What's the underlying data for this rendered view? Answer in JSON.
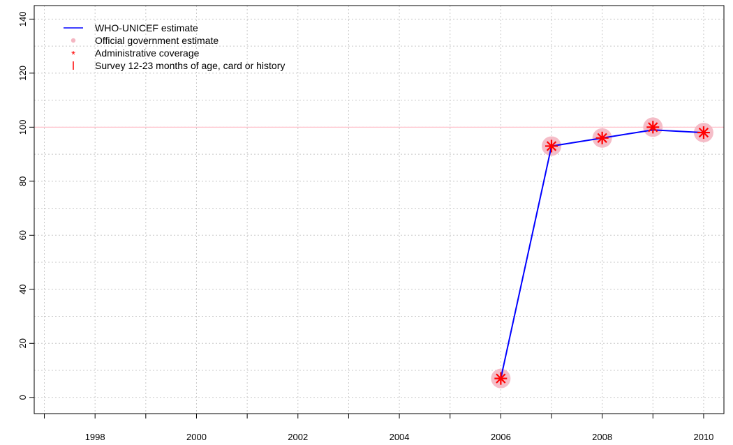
{
  "chart_data": {
    "type": "line",
    "title": "",
    "xlabel": "",
    "ylabel": "",
    "xlim": [
      1996.8,
      2010.4
    ],
    "ylim": [
      -6,
      145
    ],
    "x_ticks": [
      "1998",
      "2000",
      "2002",
      "2004",
      "2006",
      "2008",
      "2010"
    ],
    "y_ticks": [
      "0",
      "20",
      "40",
      "60",
      "80",
      "100",
      "120",
      "140"
    ],
    "grid": true,
    "reference_line": {
      "y": 100,
      "color": "#ffc0cb"
    },
    "legend_position": "top-left",
    "series": [
      {
        "name": "WHO-UNICEF estimate",
        "kind": "line",
        "color": "#0000ff",
        "x": [
          2006,
          2007,
          2008,
          2009,
          2010
        ],
        "y": [
          7,
          93,
          96,
          99,
          98
        ]
      },
      {
        "name": "Official government estimate",
        "kind": "points",
        "color": "#f4b6c2",
        "x": [
          2006,
          2007,
          2008,
          2009,
          2010
        ],
        "y": [
          7,
          93,
          96,
          100,
          98
        ]
      },
      {
        "name": "Administrative coverage",
        "kind": "asterisk",
        "color": "#ff0000",
        "x": [
          2006,
          2007,
          2008,
          2009,
          2010
        ],
        "y": [
          7,
          93,
          96,
          100,
          98
        ]
      },
      {
        "name": "Survey 12-23 months of age, card or history",
        "kind": "tick",
        "color": "#ff0000",
        "x": [],
        "y": []
      }
    ]
  }
}
